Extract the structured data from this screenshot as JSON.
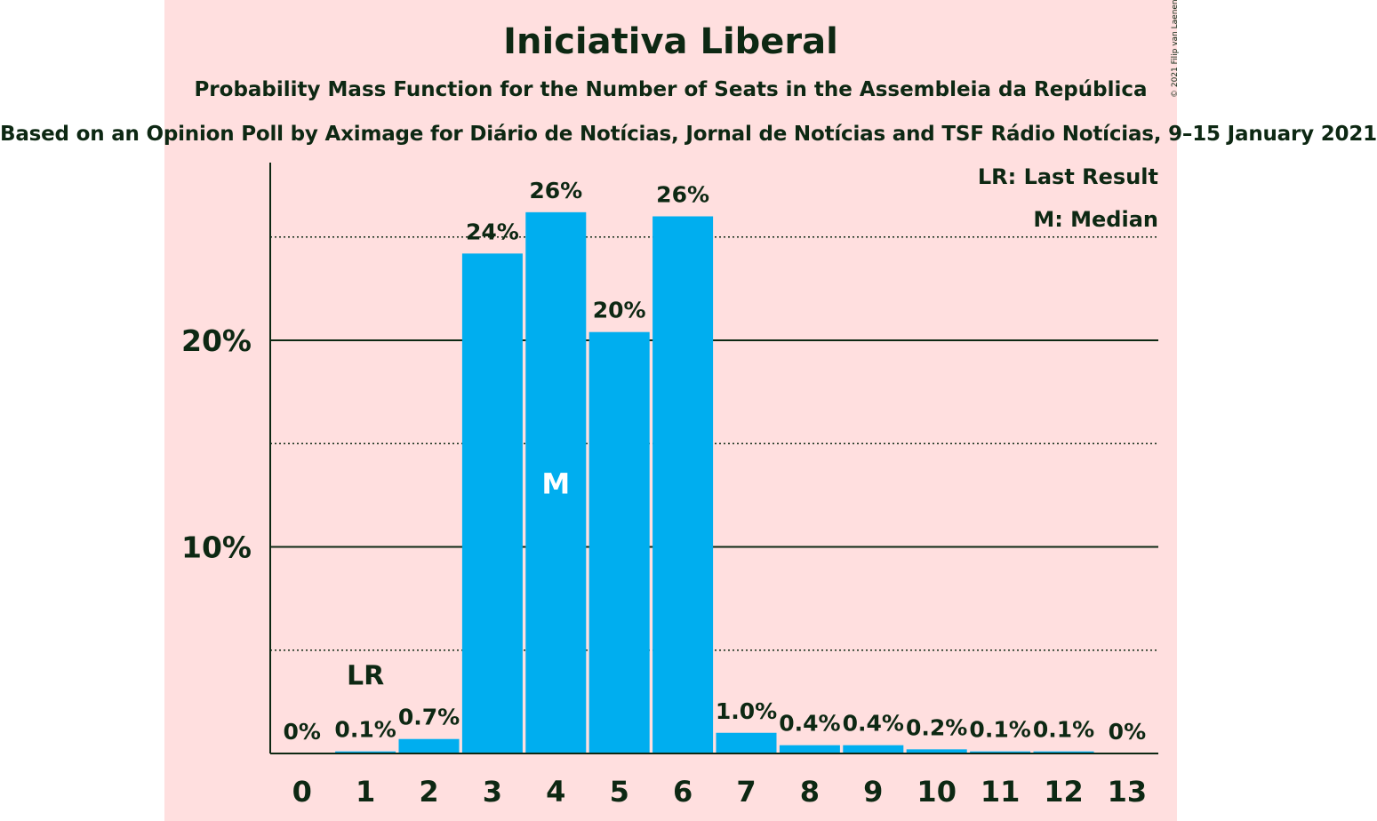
{
  "header": {
    "title": "Iniciativa Liberal",
    "subtitle": "Probability Mass Function for the Number of Seats in the Assembleia da República",
    "source": "Based on an Opinion Poll by Aximage for Diário de Notícias, Jornal de Notícias and TSF Rádio Notícias, 9–15 January 2021",
    "copyright": "© 2021 Filip van Laenen"
  },
  "legend": {
    "last_result": "LR: Last Result",
    "median": "M: Median"
  },
  "colors": {
    "bar": "#00aeef",
    "background": "#ffdfdf",
    "text": "#0d2813"
  },
  "chart_data": {
    "type": "bar",
    "categories": [
      "0",
      "1",
      "2",
      "3",
      "4",
      "5",
      "6",
      "7",
      "8",
      "9",
      "10",
      "11",
      "12",
      "13"
    ],
    "values": [
      0,
      0.1,
      0.7,
      24.2,
      26.2,
      20.4,
      26.0,
      1.0,
      0.4,
      0.4,
      0.2,
      0.1,
      0.1,
      0
    ],
    "labels": [
      "0%",
      "0.1%",
      "0.7%",
      "24%",
      "26%",
      "20%",
      "26%",
      "1.0%",
      "0.4%",
      "0.4%",
      "0.2%",
      "0.1%",
      "0.1%",
      "0%"
    ],
    "ylim": [
      0,
      28.5
    ],
    "yticks": [
      {
        "value": 10,
        "label": "10%"
      },
      {
        "value": 20,
        "label": "20%"
      }
    ],
    "minor_gridlines": [
      5,
      15,
      25
    ],
    "last_result": {
      "category": "1",
      "label": "LR"
    },
    "median": {
      "category": "4",
      "label": "M"
    }
  }
}
